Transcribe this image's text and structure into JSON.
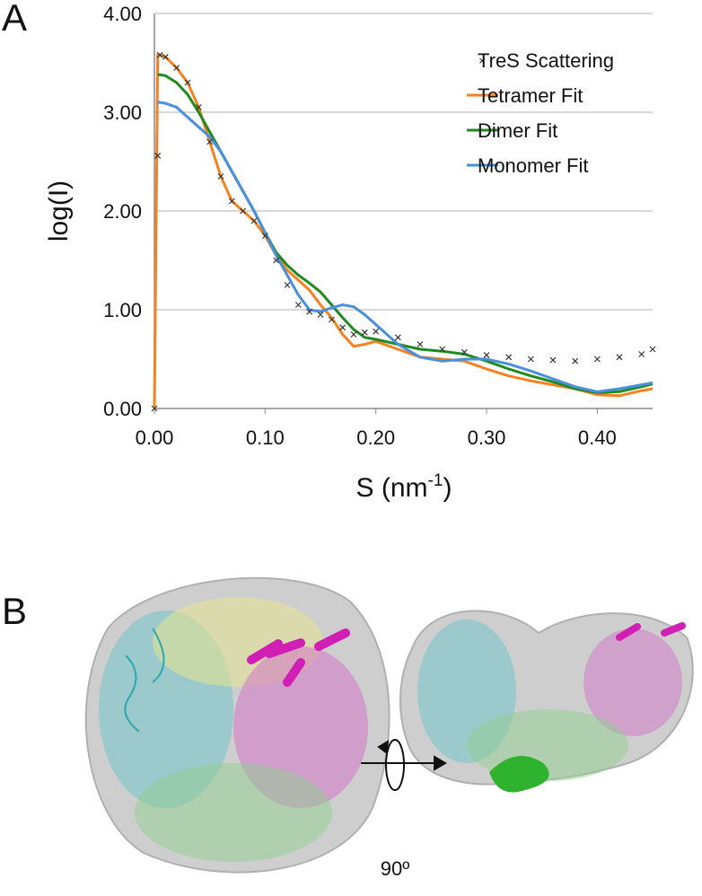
{
  "panel_labels": [
    "A",
    "B"
  ],
  "rotation_label": "90º",
  "chart_data": {
    "type": "line",
    "y_label": "log(I)",
    "x_label": [
      "S (nm",
      "-1",
      ")"
    ],
    "xlim": [
      0,
      0.45
    ],
    "ylim": [
      0,
      4
    ],
    "xticks": [
      {
        "value": 0,
        "label": "0.00"
      },
      {
        "value": 0.1,
        "label": "0.10"
      },
      {
        "value": 0.2,
        "label": "0.20"
      },
      {
        "value": 0.3,
        "label": "0.30"
      },
      {
        "value": 0.4,
        "label": "0.40"
      }
    ],
    "yticks": [
      {
        "value": 0,
        "label": "0.00"
      },
      {
        "value": 1,
        "label": "1.00"
      },
      {
        "value": 2,
        "label": "2.00"
      },
      {
        "value": 3,
        "label": "3.00"
      },
      {
        "value": 4,
        "label": "4.00"
      }
    ],
    "grid": true,
    "legend": "upper right",
    "x": [
      0,
      0.003,
      0.005,
      0.01,
      0.02,
      0.03,
      0.04,
      0.05,
      0.06,
      0.07,
      0.08,
      0.09,
      0.1,
      0.11,
      0.12,
      0.13,
      0.14,
      0.15,
      0.16,
      0.17,
      0.18,
      0.19,
      0.2,
      0.22,
      0.24,
      0.26,
      0.28,
      0.3,
      0.32,
      0.34,
      0.36,
      0.38,
      0.4,
      0.42,
      0.44,
      0.45
    ],
    "series": [
      {
        "name": "TreS Scattering",
        "color": "#333333",
        "marker": "x",
        "values": [
          0,
          2.56,
          3.58,
          3.56,
          3.45,
          3.3,
          3.05,
          2.7,
          2.35,
          2.1,
          2.0,
          1.9,
          1.75,
          1.5,
          1.25,
          1.05,
          0.98,
          0.95,
          0.9,
          0.82,
          0.75,
          0.77,
          0.78,
          0.72,
          0.65,
          0.6,
          0.57,
          0.54,
          0.52,
          0.5,
          0.49,
          0.48,
          0.5,
          0.52,
          0.55,
          0.6
        ]
      },
      {
        "name": "Tetramer Fit",
        "color": "#f5821f",
        "values": [
          0,
          3.58,
          3.58,
          3.56,
          3.45,
          3.3,
          3.05,
          2.7,
          2.35,
          2.1,
          2.0,
          1.9,
          1.75,
          1.55,
          1.4,
          1.3,
          1.2,
          1.05,
          0.92,
          0.75,
          0.63,
          0.65,
          0.68,
          0.6,
          0.52,
          0.5,
          0.48,
          0.4,
          0.33,
          0.28,
          0.24,
          0.2,
          0.14,
          0.13,
          0.18,
          0.2
        ]
      },
      {
        "name": "Dimer Fit",
        "color": "#1f8a1f",
        "values": [
          null,
          3.38,
          3.38,
          3.37,
          3.3,
          3.18,
          3.0,
          2.8,
          2.6,
          2.4,
          2.2,
          2.0,
          1.78,
          1.58,
          1.45,
          1.35,
          1.27,
          1.18,
          1.05,
          0.92,
          0.8,
          0.72,
          0.7,
          0.65,
          0.6,
          0.58,
          0.55,
          0.48,
          0.4,
          0.33,
          0.27,
          0.2,
          0.16,
          0.17,
          0.22,
          0.25
        ]
      },
      {
        "name": "Monomer Fit",
        "color": "#4a8fdc",
        "values": [
          null,
          3.1,
          3.1,
          3.09,
          3.05,
          2.95,
          2.85,
          2.75,
          2.6,
          2.4,
          2.2,
          2.0,
          1.78,
          1.55,
          1.35,
          1.15,
          1.0,
          0.98,
          1.02,
          1.05,
          1.03,
          0.95,
          0.85,
          0.65,
          0.52,
          0.48,
          0.5,
          0.5,
          0.45,
          0.38,
          0.3,
          0.22,
          0.17,
          0.2,
          0.24,
          0.26
        ]
      }
    ]
  }
}
